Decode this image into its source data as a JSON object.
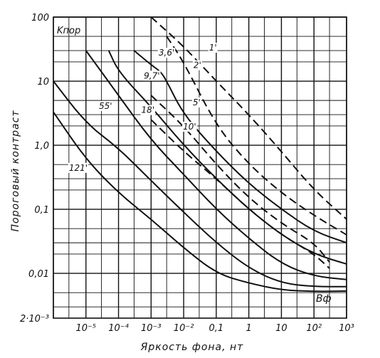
{
  "chart_data": {
    "type": "line",
    "title": "",
    "xlabel": "Яркость фона, нт",
    "ylabel": "Пороговый контраст",
    "x_scale": "log",
    "y_scale": "log",
    "xlim": [
      1e-06,
      1000
    ],
    "ylim": [
      0.002,
      100
    ],
    "x_tick_labels": [
      {
        "x": 1e-05,
        "text": "10⁻⁵"
      },
      {
        "x": 0.0001,
        "text": "10⁻⁴"
      },
      {
        "x": 0.001,
        "text": "10⁻³"
      },
      {
        "x": 0.01,
        "text": "10⁻²"
      },
      {
        "x": 0.1,
        "text": "0,1"
      },
      {
        "x": 1,
        "text": "1"
      },
      {
        "x": 10,
        "text": "10"
      },
      {
        "x": 100,
        "text": "10²"
      },
      {
        "x": 1000,
        "text": "10³"
      }
    ],
    "y_tick_labels": [
      {
        "y": 100,
        "text": "100"
      },
      {
        "y": 10,
        "text": "10"
      },
      {
        "y": 1,
        "text": "1,0"
      },
      {
        "y": 0.1,
        "text": "0,1"
      },
      {
        "y": 0.01,
        "text": "0,01"
      },
      {
        "y": 0.002,
        "text": "2·10⁻³"
      }
    ],
    "corner_label_y": "Kпор",
    "corner_label_x": "Bф",
    "grid": true,
    "series": [
      {
        "name": "1'",
        "style": "dashed",
        "x": [
          0.001,
          0.01,
          0.1,
          1,
          10,
          100,
          1000
        ],
        "y": [
          100,
          35,
          10,
          3,
          0.8,
          0.2,
          0.07
        ],
        "label": {
          "x": 0.06,
          "y": 30
        }
      },
      {
        "name": "2'",
        "style": "dashed",
        "x": [
          0.003,
          0.01,
          0.1,
          1,
          10,
          100,
          1000
        ],
        "y": [
          50,
          20,
          2,
          0.5,
          0.18,
          0.08,
          0.04
        ],
        "label": {
          "x": 0.02,
          "y": 16
        }
      },
      {
        "name": "3,6'",
        "style": "solid",
        "x": [
          0.0003,
          0.001,
          0.002,
          0.003,
          0.01,
          0.1,
          1,
          10,
          100,
          1000
        ],
        "y": [
          30,
          18,
          14,
          10,
          3,
          0.8,
          0.25,
          0.1,
          0.045,
          0.03
        ],
        "label": {
          "x": 0.0017,
          "y": 25
        }
      },
      {
        "name": "5'",
        "style": "dashed",
        "x": [
          0.001,
          0.01,
          0.1,
          1,
          10,
          100,
          300
        ],
        "y": [
          6,
          2,
          0.5,
          0.15,
          0.06,
          0.03,
          0.015
        ],
        "label": {
          "x": 0.019,
          "y": 4.2
        }
      },
      {
        "name": "9,7'",
        "style": "solid",
        "x": [
          5e-05,
          0.0001,
          0.001,
          0.01,
          0.1,
          1,
          10,
          100,
          1000
        ],
        "y": [
          30,
          14,
          4,
          1,
          0.3,
          0.1,
          0.04,
          0.02,
          0.014
        ],
        "label": {
          "x": 0.0006,
          "y": 11
        }
      },
      {
        "name": "10'",
        "style": "dashed",
        "x": [
          0.001,
          0.01,
          0.1,
          1,
          10,
          100,
          300
        ],
        "y": [
          2.5,
          0.8,
          0.3,
          0.1,
          0.04,
          0.02,
          0.012
        ],
        "label": {
          "x": 0.0095,
          "y": 1.75
        }
      },
      {
        "name": "18'",
        "style": "solid",
        "x": [
          1e-05,
          0.0001,
          0.001,
          0.01,
          0.1,
          1,
          10,
          100,
          1000
        ],
        "y": [
          30,
          6,
          1.2,
          0.35,
          0.1,
          0.035,
          0.014,
          0.009,
          0.008
        ],
        "label": {
          "x": 0.0005,
          "y": 3.2
        }
      },
      {
        "name": "55'",
        "style": "solid",
        "x": [
          1e-06,
          1e-05,
          0.0001,
          0.001,
          0.01,
          0.1,
          1,
          10,
          100,
          1000
        ],
        "y": [
          10,
          2.2,
          0.9,
          0.28,
          0.09,
          0.03,
          0.012,
          0.007,
          0.0062,
          0.0062
        ],
        "label": {
          "x": 2.5e-05,
          "y": 3.7
        }
      },
      {
        "name": "121'",
        "style": "solid",
        "x": [
          1e-06,
          1e-05,
          0.0001,
          0.001,
          0.01,
          0.1,
          1,
          10,
          100,
          1000
        ],
        "y": [
          3.3,
          0.6,
          0.18,
          0.07,
          0.025,
          0.01,
          0.007,
          0.0055,
          0.0052,
          0.0053
        ],
        "label": {
          "x": 3e-06,
          "y": 0.4
        }
      }
    ]
  }
}
